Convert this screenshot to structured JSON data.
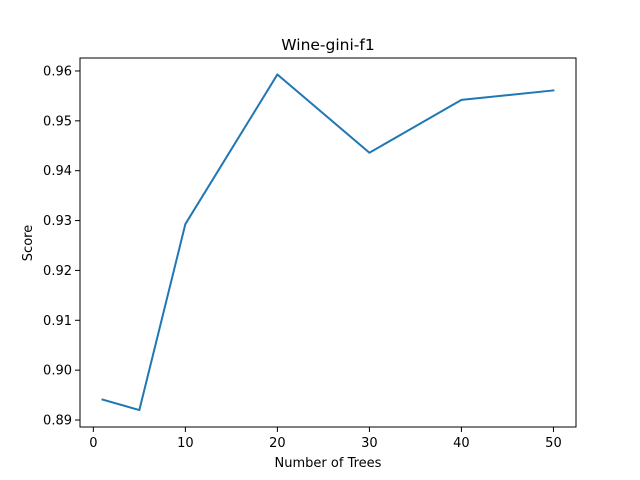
{
  "chart_data": {
    "type": "line",
    "title": "Wine-gini-f1",
    "xlabel": "Number of Trees",
    "ylabel": "Score",
    "x": [
      1,
      5,
      10,
      20,
      30,
      40,
      50
    ],
    "series": [
      {
        "values": [
          0.8941,
          0.892,
          0.9293,
          0.9593,
          0.9436,
          0.9542,
          0.9561
        ]
      }
    ],
    "xlim": [
      -1.45,
      52.45
    ],
    "ylim": [
      0.8886,
      0.9626
    ],
    "xticks": [
      0,
      10,
      20,
      30,
      40,
      50
    ],
    "xtick_labels": [
      "0",
      "10",
      "20",
      "30",
      "40",
      "50"
    ],
    "yticks": [
      0.89,
      0.9,
      0.91,
      0.92,
      0.93,
      0.94,
      0.95,
      0.96
    ],
    "ytick_labels": [
      "0.89",
      "0.90",
      "0.91",
      "0.92",
      "0.93",
      "0.94",
      "0.95",
      "0.96"
    ],
    "grid": false,
    "line_color": "#1f77b4"
  }
}
